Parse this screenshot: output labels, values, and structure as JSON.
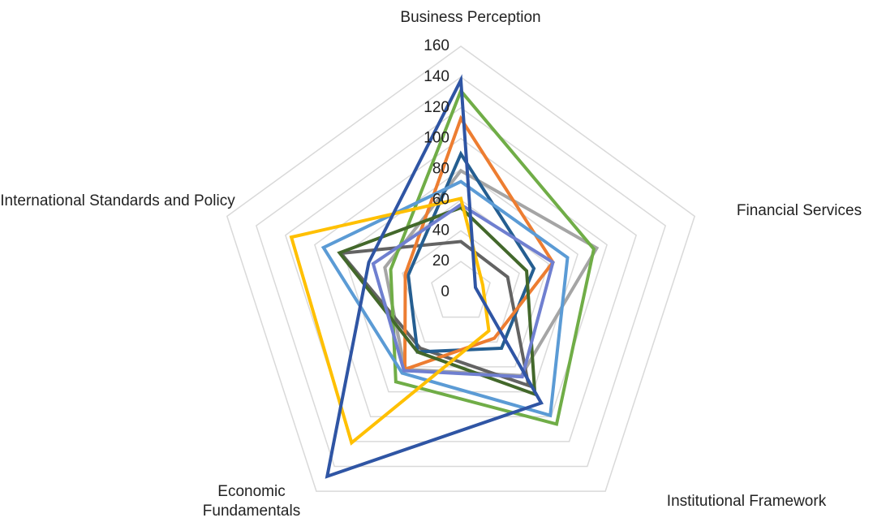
{
  "chart_data": {
    "type": "radar",
    "categories": [
      "Business Perception",
      "Financial Services",
      "Institutional Framework",
      "Economic Fundamentals",
      "International Standards and Policy"
    ],
    "ylim": [
      0,
      160
    ],
    "yticks": [
      0,
      20,
      40,
      60,
      80,
      100,
      120,
      140,
      160
    ],
    "grid": true,
    "series": [
      {
        "color": "#a5a5a5",
        "values": [
          79,
          93,
          67,
          62,
          52
        ]
      },
      {
        "color": "#636363",
        "values": [
          33,
          32,
          75,
          45,
          82
        ]
      },
      {
        "color": "#255e91",
        "values": [
          90,
          50,
          45,
          48,
          36
        ]
      },
      {
        "color": "#ed7d31",
        "values": [
          113,
          63,
          37,
          62,
          38
        ]
      },
      {
        "color": "#70ad47",
        "values": [
          131,
          91,
          106,
          72,
          48
        ]
      },
      {
        "color": "#43682b",
        "values": [
          55,
          45,
          82,
          48,
          83
        ]
      },
      {
        "color": "#5b9bd5",
        "values": [
          72,
          73,
          99,
          65,
          94
        ]
      },
      {
        "color": "#6f7fd0",
        "values": [
          57,
          63,
          68,
          63,
          60
        ]
      },
      {
        "color": "#ffc000",
        "values": [
          61,
          15,
          31,
          121,
          116
        ]
      },
      {
        "color": "#2f55a4",
        "values": [
          138,
          10,
          89,
          148,
          63
        ]
      }
    ]
  }
}
